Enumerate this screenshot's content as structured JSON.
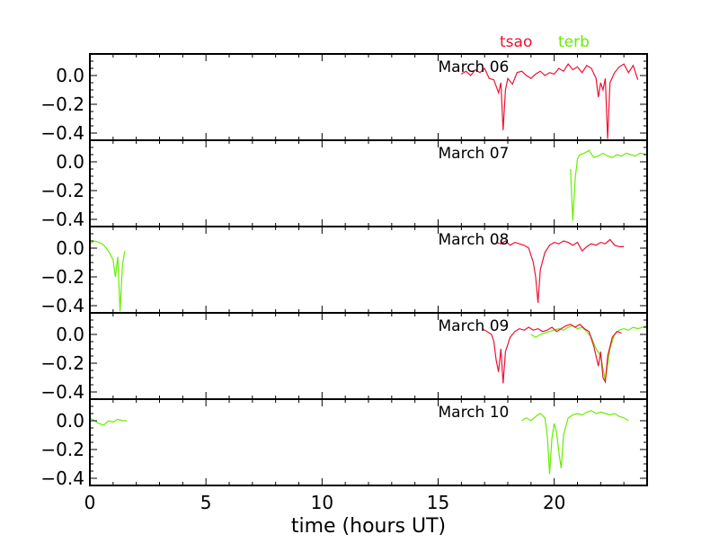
{
  "legend": {
    "series1": "tsao",
    "series2": "terb"
  },
  "xlabel": "time (hours UT)",
  "colors": {
    "tsao": "#ee1133",
    "terb": "#66ee00",
    "axis": "#000000"
  },
  "chart_data": {
    "type": "line",
    "xlabel": "time (hours UT)",
    "ylabel": "",
    "xlim": [
      0,
      24
    ],
    "ylim": [
      -0.45,
      0.15
    ],
    "xticks": [
      "0",
      "5",
      "10",
      "15",
      "20"
    ],
    "xtick_values": [
      0,
      5,
      10,
      15,
      20
    ],
    "yticks": [
      "0.0",
      "−0.2",
      "−0.4"
    ],
    "ytick_values": [
      0.0,
      -0.2,
      -0.4
    ],
    "legend": [
      "tsao",
      "terb"
    ],
    "panels": [
      {
        "label": "March 06",
        "series": [
          {
            "name": "tsao",
            "points": [
              [
                16.0,
                0.01
              ],
              [
                16.2,
                0.03
              ],
              [
                16.4,
                0.0
              ],
              [
                16.6,
                0.04
              ],
              [
                16.8,
                0.02
              ],
              [
                17.0,
                0.05
              ],
              [
                17.2,
                -0.02
              ],
              [
                17.4,
                -0.03
              ],
              [
                17.6,
                -0.12
              ],
              [
                17.7,
                -0.05
              ],
              [
                17.8,
                -0.38
              ],
              [
                17.9,
                -0.1
              ],
              [
                18.0,
                -0.02
              ],
              [
                18.2,
                -0.06
              ],
              [
                18.4,
                0.02
              ],
              [
                18.6,
                0.03
              ],
              [
                18.8,
                0.0
              ],
              [
                19.0,
                -0.02
              ],
              [
                19.2,
                0.01
              ],
              [
                19.4,
                0.03
              ],
              [
                19.6,
                0.0
              ],
              [
                19.8,
                0.02
              ],
              [
                20.0,
                0.01
              ],
              [
                20.2,
                0.05
              ],
              [
                20.4,
                0.03
              ],
              [
                20.6,
                0.08
              ],
              [
                20.8,
                0.04
              ],
              [
                21.0,
                0.06
              ],
              [
                21.2,
                0.02
              ],
              [
                21.4,
                0.07
              ],
              [
                21.6,
                0.05
              ],
              [
                21.8,
                -0.02
              ],
              [
                21.9,
                -0.15
              ],
              [
                22.0,
                -0.05
              ],
              [
                22.1,
                -0.1
              ],
              [
                22.2,
                -0.02
              ],
              [
                22.3,
                -0.44
              ],
              [
                22.4,
                -0.05
              ],
              [
                22.6,
                0.02
              ],
              [
                22.8,
                0.06
              ],
              [
                23.0,
                0.08
              ],
              [
                23.2,
                0.02
              ],
              [
                23.4,
                0.07
              ],
              [
                23.6,
                -0.03
              ]
            ]
          }
        ]
      },
      {
        "label": "March 07",
        "series": [
          {
            "name": "terb",
            "points": [
              [
                20.7,
                -0.05
              ],
              [
                20.8,
                -0.41
              ],
              [
                20.9,
                -0.12
              ],
              [
                21.0,
                0.02
              ],
              [
                21.1,
                0.05
              ],
              [
                21.3,
                0.06
              ],
              [
                21.5,
                0.08
              ],
              [
                21.7,
                0.03
              ],
              [
                21.9,
                0.04
              ],
              [
                22.1,
                0.06
              ],
              [
                22.3,
                0.04
              ],
              [
                22.5,
                0.03
              ],
              [
                22.7,
                0.05
              ],
              [
                22.9,
                0.04
              ],
              [
                23.1,
                0.06
              ],
              [
                23.3,
                0.05
              ],
              [
                23.5,
                0.04
              ],
              [
                23.7,
                0.06
              ],
              [
                24.0,
                0.05
              ]
            ]
          }
        ]
      },
      {
        "label": "March 08",
        "series": [
          {
            "name": "terb",
            "points": [
              [
                0.0,
                0.03
              ],
              [
                0.2,
                0.05
              ],
              [
                0.4,
                0.04
              ],
              [
                0.6,
                0.02
              ],
              [
                0.8,
                -0.02
              ],
              [
                1.0,
                -0.08
              ],
              [
                1.1,
                -0.2
              ],
              [
                1.2,
                -0.06
              ],
              [
                1.3,
                -0.44
              ],
              [
                1.4,
                -0.12
              ],
              [
                1.5,
                -0.02
              ]
            ]
          },
          {
            "name": "tsao",
            "points": [
              [
                17.5,
                0.04
              ],
              [
                17.7,
                0.03
              ],
              [
                17.9,
                0.05
              ],
              [
                18.1,
                0.02
              ],
              [
                18.3,
                0.04
              ],
              [
                18.5,
                0.03
              ],
              [
                18.7,
                0.02
              ],
              [
                18.9,
                0.0
              ],
              [
                19.1,
                -0.1
              ],
              [
                19.2,
                -0.2
              ],
              [
                19.3,
                -0.38
              ],
              [
                19.4,
                -0.15
              ],
              [
                19.6,
                -0.03
              ],
              [
                19.8,
                0.02
              ],
              [
                20.0,
                0.04
              ],
              [
                20.2,
                0.03
              ],
              [
                20.4,
                0.05
              ],
              [
                20.6,
                0.04
              ],
              [
                20.8,
                0.02
              ],
              [
                21.0,
                0.04
              ],
              [
                21.2,
                -0.02
              ],
              [
                21.4,
                0.01
              ],
              [
                21.6,
                0.03
              ],
              [
                21.8,
                0.02
              ],
              [
                22.0,
                0.04
              ],
              [
                22.2,
                0.03
              ],
              [
                22.4,
                0.06
              ],
              [
                22.6,
                0.02
              ],
              [
                22.8,
                0.01
              ],
              [
                23.0,
                0.01
              ]
            ]
          }
        ]
      },
      {
        "label": "March 09",
        "series": [
          {
            "name": "terb",
            "points": [
              [
                19.0,
                0.0
              ],
              [
                19.2,
                -0.02
              ],
              [
                19.4,
                0.0
              ],
              [
                19.6,
                0.01
              ],
              [
                19.8,
                0.02
              ],
              [
                20.0,
                0.03
              ],
              [
                20.2,
                0.04
              ],
              [
                20.4,
                0.03
              ],
              [
                20.6,
                0.05
              ],
              [
                20.8,
                0.06
              ],
              [
                21.0,
                0.04
              ],
              [
                21.2,
                0.05
              ],
              [
                21.4,
                0.02
              ],
              [
                21.6,
                -0.02
              ],
              [
                21.8,
                -0.1
              ],
              [
                22.0,
                -0.15
              ],
              [
                22.2,
                -0.32
              ],
              [
                22.4,
                -0.1
              ],
              [
                22.6,
                0.0
              ],
              [
                22.8,
                0.03
              ],
              [
                23.0,
                0.04
              ],
              [
                23.2,
                0.03
              ],
              [
                23.4,
                0.05
              ],
              [
                23.6,
                0.04
              ],
              [
                24.0,
                0.06
              ]
            ]
          },
          {
            "name": "tsao",
            "points": [
              [
                16.9,
                0.04
              ],
              [
                17.1,
                0.02
              ],
              [
                17.3,
                0.0
              ],
              [
                17.4,
                -0.05
              ],
              [
                17.5,
                -0.18
              ],
              [
                17.6,
                -0.26
              ],
              [
                17.7,
                -0.1
              ],
              [
                17.8,
                -0.34
              ],
              [
                17.9,
                -0.12
              ],
              [
                18.1,
                -0.02
              ],
              [
                18.3,
                0.02
              ],
              [
                18.5,
                0.04
              ],
              [
                18.7,
                0.03
              ],
              [
                18.9,
                0.05
              ],
              [
                19.1,
                0.03
              ],
              [
                19.3,
                0.04
              ],
              [
                19.5,
                0.02
              ],
              [
                19.7,
                0.03
              ],
              [
                19.9,
                0.05
              ],
              [
                20.1,
                0.02
              ],
              [
                20.3,
                0.04
              ],
              [
                20.5,
                0.06
              ],
              [
                20.7,
                0.07
              ],
              [
                20.9,
                0.05
              ],
              [
                21.1,
                0.07
              ],
              [
                21.3,
                0.04
              ],
              [
                21.5,
                0.02
              ],
              [
                21.7,
                -0.08
              ],
              [
                21.9,
                -0.22
              ],
              [
                22.0,
                -0.12
              ],
              [
                22.1,
                -0.3
              ],
              [
                22.2,
                -0.33
              ],
              [
                22.3,
                -0.15
              ],
              [
                22.5,
                -0.02
              ],
              [
                22.7,
                0.02
              ],
              [
                22.9,
                0.01
              ]
            ]
          }
        ]
      },
      {
        "label": "March 10",
        "series": [
          {
            "name": "terb",
            "points": [
              [
                0.0,
                0.02
              ],
              [
                0.2,
                0.0
              ],
              [
                0.4,
                -0.02
              ],
              [
                0.6,
                -0.03
              ],
              [
                0.8,
                0.0
              ],
              [
                1.0,
                -0.01
              ],
              [
                1.2,
                0.01
              ],
              [
                1.4,
                0.0
              ],
              [
                1.6,
                0.0
              ]
            ]
          },
          {
            "name": "terb",
            "points": [
              [
                18.6,
                0.0
              ],
              [
                18.8,
                0.02
              ],
              [
                19.0,
                0.0
              ],
              [
                19.2,
                0.03
              ],
              [
                19.4,
                0.05
              ],
              [
                19.6,
                0.02
              ],
              [
                19.7,
                -0.1
              ],
              [
                19.8,
                -0.37
              ],
              [
                19.9,
                -0.12
              ],
              [
                20.0,
                -0.02
              ],
              [
                20.1,
                -0.08
              ],
              [
                20.2,
                -0.22
              ],
              [
                20.3,
                -0.33
              ],
              [
                20.4,
                -0.1
              ],
              [
                20.6,
                0.02
              ],
              [
                20.8,
                0.04
              ],
              [
                21.0,
                0.05
              ],
              [
                21.2,
                0.04
              ],
              [
                21.4,
                0.06
              ],
              [
                21.6,
                0.07
              ],
              [
                21.8,
                0.05
              ],
              [
                22.0,
                0.06
              ],
              [
                22.2,
                0.05
              ],
              [
                22.4,
                0.04
              ],
              [
                22.6,
                0.05
              ],
              [
                22.8,
                0.03
              ],
              [
                23.0,
                0.02
              ],
              [
                23.2,
                0.0
              ]
            ]
          }
        ]
      }
    ]
  }
}
